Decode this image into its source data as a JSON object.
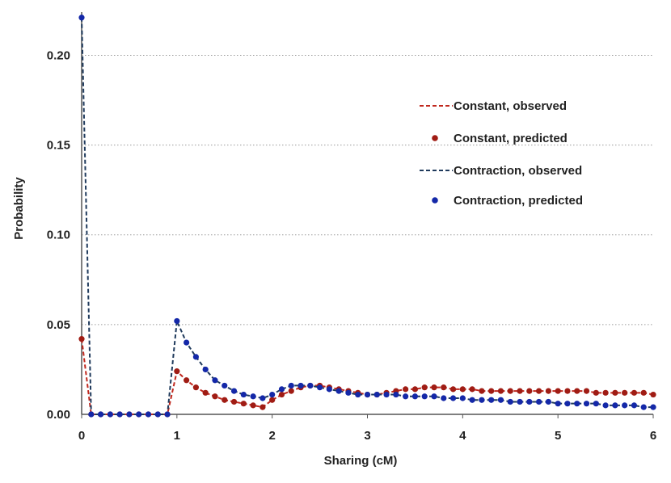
{
  "chart_data": {
    "type": "line",
    "title": "",
    "xlabel": "Sharing (cM)",
    "ylabel": "Probability",
    "xlim": [
      0,
      6
    ],
    "ylim": [
      0,
      0.22
    ],
    "x_ticks": [
      "0",
      "1",
      "2",
      "3",
      "4",
      "5",
      "6"
    ],
    "y_ticks": [
      "0.00",
      "0.05",
      "0.10",
      "0.15",
      "0.20"
    ],
    "y_tick_values": [
      0,
      0.05,
      0.1,
      0.15,
      0.2
    ],
    "grid": "horizontal-dotted",
    "legend_position": "top-right",
    "x": [
      0,
      0.1,
      0.2,
      0.3,
      0.4,
      0.5,
      0.6,
      0.7,
      0.8,
      0.9,
      1.0,
      1.1,
      1.2,
      1.3,
      1.4,
      1.5,
      1.6,
      1.7,
      1.8,
      1.9,
      2.0,
      2.1,
      2.2,
      2.3,
      2.4,
      2.5,
      2.6,
      2.7,
      2.8,
      2.9,
      3.0,
      3.1,
      3.2,
      3.3,
      3.4,
      3.5,
      3.6,
      3.7,
      3.8,
      3.9,
      4.0,
      4.1,
      4.2,
      4.3,
      4.4,
      4.5,
      4.6,
      4.7,
      4.8,
      4.9,
      5.0,
      5.1,
      5.2,
      5.3,
      5.4,
      5.5,
      5.6,
      5.7,
      5.8,
      5.9,
      6.0
    ],
    "series": [
      {
        "name": "Constant, observed",
        "style": "dashed-line",
        "color": "#c0281e",
        "values": [
          0.042,
          0,
          0,
          0,
          0,
          0,
          0,
          0,
          0,
          0,
          0.024,
          0.019,
          0.015,
          0.012,
          0.01,
          0.008,
          0.007,
          0.006,
          0.005,
          0.004,
          0.008,
          0.011,
          0.013,
          0.015,
          0.016,
          0.016,
          0.015,
          0.014,
          0.013,
          0.012,
          0.011,
          0.011,
          0.012,
          0.013,
          0.014,
          0.014,
          0.015,
          0.015,
          0.015,
          0.014,
          0.014,
          0.014,
          0.013,
          0.013,
          0.013,
          0.013,
          0.013,
          0.013,
          0.013,
          0.013,
          0.013,
          0.013,
          0.013,
          0.013,
          0.012,
          0.012,
          0.012,
          0.012,
          0.012,
          0.012,
          0.011
        ]
      },
      {
        "name": "Constant, predicted",
        "style": "markers",
        "color": "#a01c14",
        "values": [
          0.042,
          0,
          0,
          0,
          0,
          0,
          0,
          0,
          0,
          0,
          0.024,
          0.019,
          0.015,
          0.012,
          0.01,
          0.008,
          0.007,
          0.006,
          0.005,
          0.004,
          0.008,
          0.011,
          0.013,
          0.015,
          0.016,
          0.016,
          0.015,
          0.014,
          0.013,
          0.012,
          0.011,
          0.011,
          0.012,
          0.013,
          0.014,
          0.014,
          0.015,
          0.015,
          0.015,
          0.014,
          0.014,
          0.014,
          0.013,
          0.013,
          0.013,
          0.013,
          0.013,
          0.013,
          0.013,
          0.013,
          0.013,
          0.013,
          0.013,
          0.013,
          0.012,
          0.012,
          0.012,
          0.012,
          0.012,
          0.012,
          0.011
        ]
      },
      {
        "name": "Contraction, observed",
        "style": "dashed-line",
        "color": "#1f3a5c",
        "values": [
          0.221,
          0,
          0,
          0,
          0,
          0,
          0,
          0,
          0,
          0,
          0.052,
          0.04,
          0.032,
          0.025,
          0.019,
          0.016,
          0.013,
          0.011,
          0.01,
          0.009,
          0.011,
          0.014,
          0.016,
          0.016,
          0.016,
          0.015,
          0.014,
          0.013,
          0.012,
          0.011,
          0.011,
          0.011,
          0.011,
          0.011,
          0.01,
          0.01,
          0.01,
          0.01,
          0.009,
          0.009,
          0.009,
          0.008,
          0.008,
          0.008,
          0.008,
          0.007,
          0.007,
          0.007,
          0.007,
          0.007,
          0.006,
          0.006,
          0.006,
          0.006,
          0.006,
          0.005,
          0.005,
          0.005,
          0.005,
          0.004,
          0.004
        ]
      },
      {
        "name": "Contraction, predicted",
        "style": "markers",
        "color": "#1428a8",
        "values": [
          0.221,
          0,
          0,
          0,
          0,
          0,
          0,
          0,
          0,
          0,
          0.052,
          0.04,
          0.032,
          0.025,
          0.019,
          0.016,
          0.013,
          0.011,
          0.01,
          0.009,
          0.011,
          0.014,
          0.016,
          0.016,
          0.016,
          0.015,
          0.014,
          0.013,
          0.012,
          0.011,
          0.011,
          0.011,
          0.011,
          0.011,
          0.01,
          0.01,
          0.01,
          0.01,
          0.009,
          0.009,
          0.009,
          0.008,
          0.008,
          0.008,
          0.008,
          0.007,
          0.007,
          0.007,
          0.007,
          0.007,
          0.006,
          0.006,
          0.006,
          0.006,
          0.006,
          0.005,
          0.005,
          0.005,
          0.005,
          0.004,
          0.004
        ]
      }
    ]
  }
}
